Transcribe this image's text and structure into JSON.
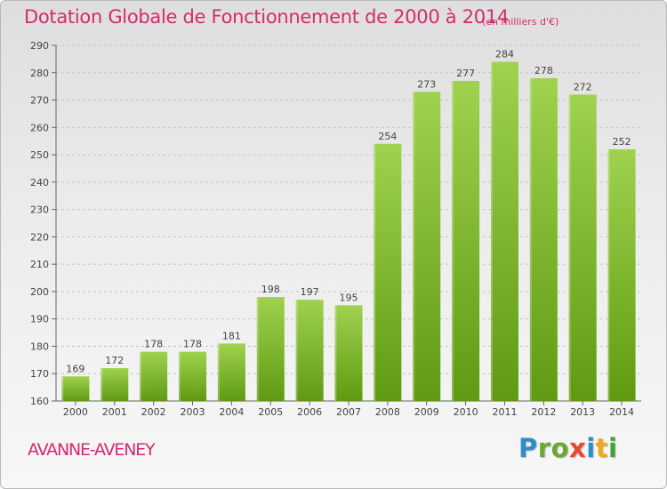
{
  "header": {
    "title": "Dotation Globale de Fonctionnement de 2000 à 2014",
    "unit": "(en milliers d'€)"
  },
  "footer": {
    "commune": "AVANNE-AVENEY",
    "logo": [
      "P",
      "ro",
      "x",
      "i",
      "t",
      "i"
    ]
  },
  "colors": {
    "title": "#d62a6f",
    "bar_light": "#9fd24e",
    "bar_dark": "#5f9a12"
  },
  "chart_data": {
    "type": "bar",
    "title": "Dotation Globale de Fonctionnement de 2000 à 2014",
    "subtitle": "(en milliers d'€)",
    "xlabel": "",
    "ylabel": "",
    "categories": [
      "2000",
      "2001",
      "2002",
      "2003",
      "2004",
      "2005",
      "2006",
      "2007",
      "2008",
      "2009",
      "2010",
      "2011",
      "2012",
      "2013",
      "2014"
    ],
    "values": [
      169,
      172,
      178,
      178,
      181,
      198,
      197,
      195,
      254,
      273,
      277,
      284,
      278,
      272,
      252
    ],
    "ylim": [
      160,
      290
    ],
    "yticks": [
      160,
      170,
      180,
      190,
      200,
      210,
      220,
      230,
      240,
      250,
      260,
      270,
      280,
      290
    ],
    "grid": "horizontal dashed",
    "legend": "none"
  }
}
